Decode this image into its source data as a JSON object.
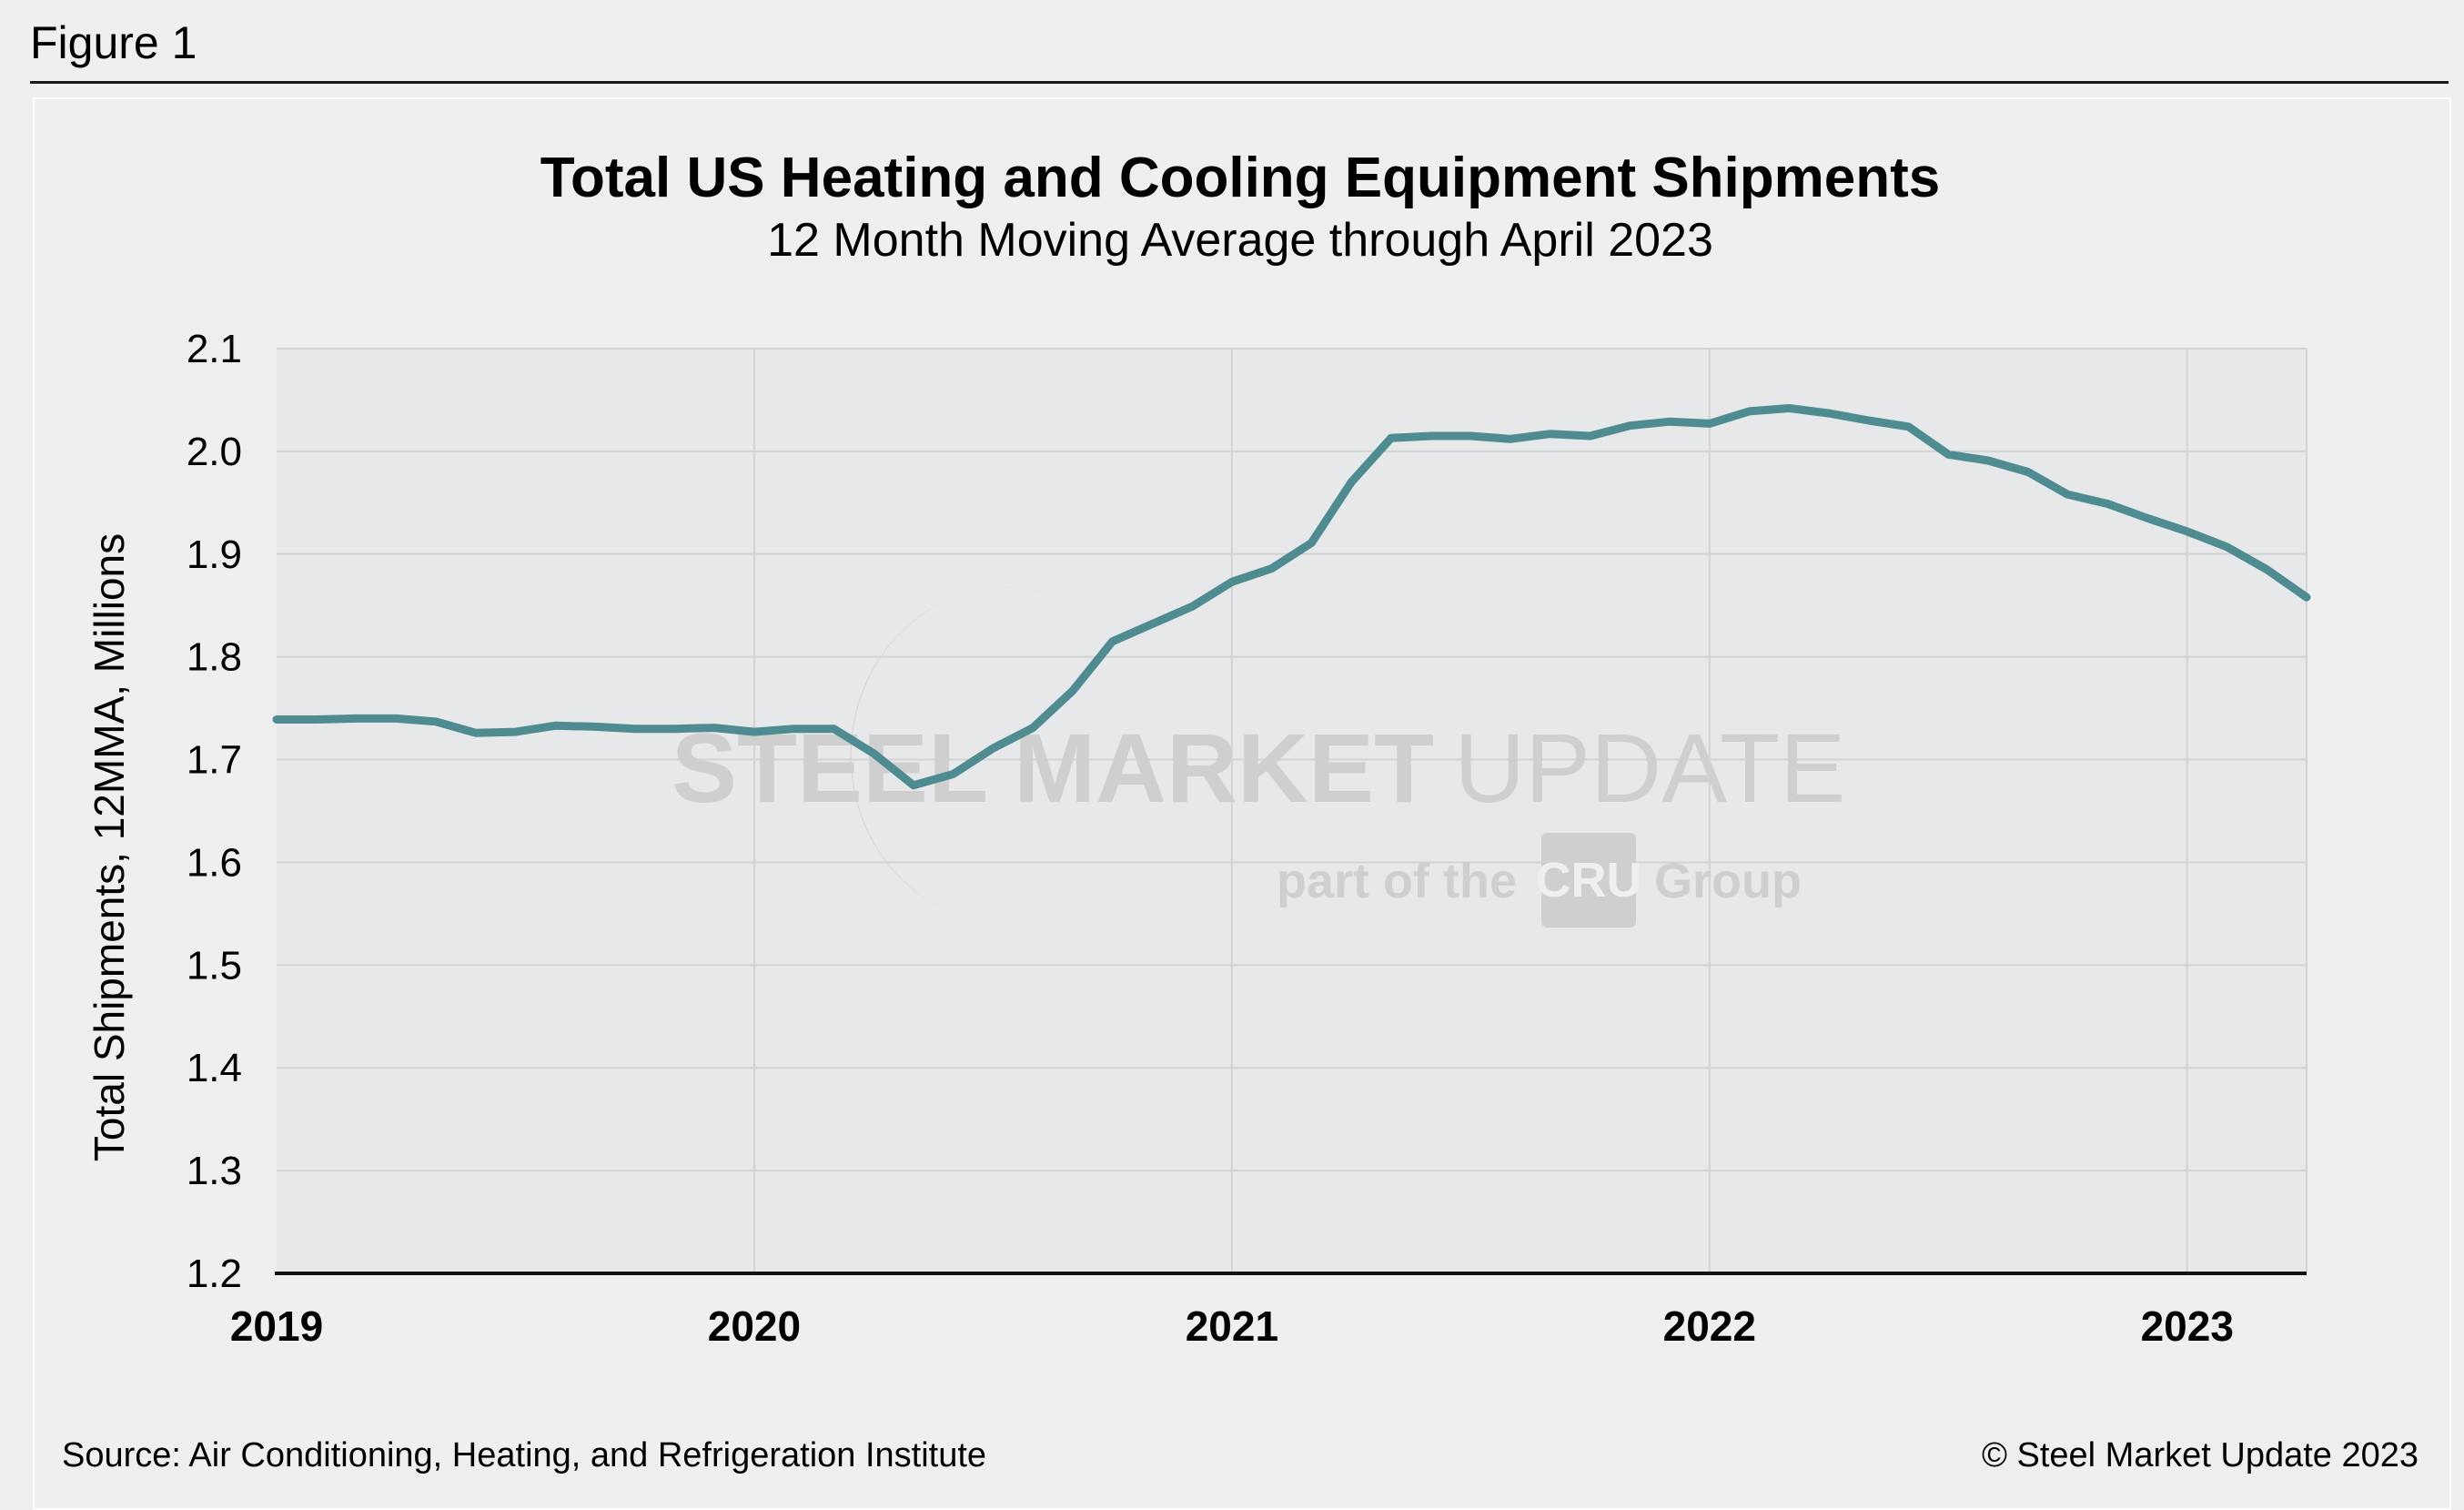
{
  "figure_label": "Figure 1",
  "source": "Source: Air Conditioning, Heating, and Refrigeration Institute",
  "copyright": "© Steel Market Update 2023",
  "watermark": {
    "brand_bold": "STEEL MARKET",
    "brand_light": "UPDATE",
    "tag_prefix": "part of the",
    "tag_logo": "CRU",
    "tag_suffix": "Group"
  },
  "colors": {
    "line": "#4f8c92",
    "plot_bg": "#e7e8ea",
    "grid": "#d3d3d3",
    "watermark": "#cfcfcf"
  },
  "chart_data": {
    "type": "line",
    "title": "Total US Heating and Cooling Equipment Shipments",
    "subtitle": "12 Month Moving Average through April 2023",
    "xlabel": "",
    "ylabel": "Total Shipments, 12MMA, Millions",
    "ylim": [
      1.2,
      2.1
    ],
    "yticks": [
      "1.2",
      "1.3",
      "1.4",
      "1.5",
      "1.6",
      "1.7",
      "1.8",
      "1.9",
      "2.0",
      "2.1"
    ],
    "xlim": [
      "2019-01",
      "2023-04"
    ],
    "xticks": [
      "2019",
      "2020",
      "2021",
      "2022",
      "2023"
    ],
    "grid": true,
    "series": [
      {
        "x": [
          "2019-01",
          "2019-02",
          "2019-03",
          "2019-04",
          "2019-05",
          "2019-06",
          "2019-07",
          "2019-08",
          "2019-09",
          "2019-10",
          "2019-11",
          "2019-12",
          "2020-01",
          "2020-02",
          "2020-03",
          "2020-04",
          "2020-05",
          "2020-06",
          "2020-07",
          "2020-08",
          "2020-09",
          "2020-10",
          "2020-11",
          "2020-12",
          "2021-01",
          "2021-02",
          "2021-03",
          "2021-04",
          "2021-05",
          "2021-06",
          "2021-07",
          "2021-08",
          "2021-09",
          "2021-10",
          "2021-11",
          "2021-12",
          "2022-01",
          "2022-02",
          "2022-03",
          "2022-04",
          "2022-05",
          "2022-06",
          "2022-07",
          "2022-08",
          "2022-09",
          "2022-10",
          "2022-11",
          "2022-12",
          "2023-01",
          "2023-02",
          "2023-03",
          "2023-04"
        ],
        "values": [
          1.739,
          1.739,
          1.74,
          1.74,
          1.737,
          1.726,
          1.727,
          1.733,
          1.732,
          1.73,
          1.73,
          1.731,
          1.727,
          1.73,
          1.73,
          1.706,
          1.675,
          1.686,
          1.711,
          1.731,
          1.767,
          1.815,
          1.832,
          1.849,
          1.873,
          1.886,
          1.911,
          1.97,
          2.013,
          2.015,
          2.015,
          2.012,
          2.017,
          2.015,
          2.025,
          2.029,
          2.027,
          2.039,
          2.042,
          2.037,
          2.03,
          2.024,
          1.997,
          1.991,
          1.98,
          1.958,
          1.949,
          1.935,
          1.922,
          1.907,
          1.885,
          1.858
        ]
      }
    ]
  }
}
